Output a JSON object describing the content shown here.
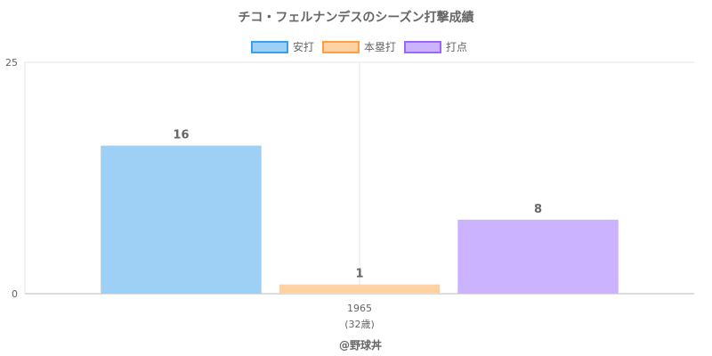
{
  "chart_data": {
    "type": "bar",
    "title": "チコ・フェルナンデスのシーズン打撃成績",
    "categories": [
      "1965"
    ],
    "category_sublabels": [
      "(32歳)"
    ],
    "series": [
      {
        "name": "安打",
        "values": [
          16
        ],
        "color": "#9ecff5",
        "border": "#36a2eb"
      },
      {
        "name": "本塁打",
        "values": [
          1
        ],
        "color": "#ffd2a4",
        "border": "#ff9f40"
      },
      {
        "name": "打点",
        "values": [
          8
        ],
        "color": "#ccb3ff",
        "border": "#9966ff"
      }
    ],
    "ylim": [
      0,
      25
    ],
    "y_ticks": [
      "0",
      "25"
    ],
    "legend_position": "top",
    "grid": true
  },
  "credit": "@野球丼"
}
